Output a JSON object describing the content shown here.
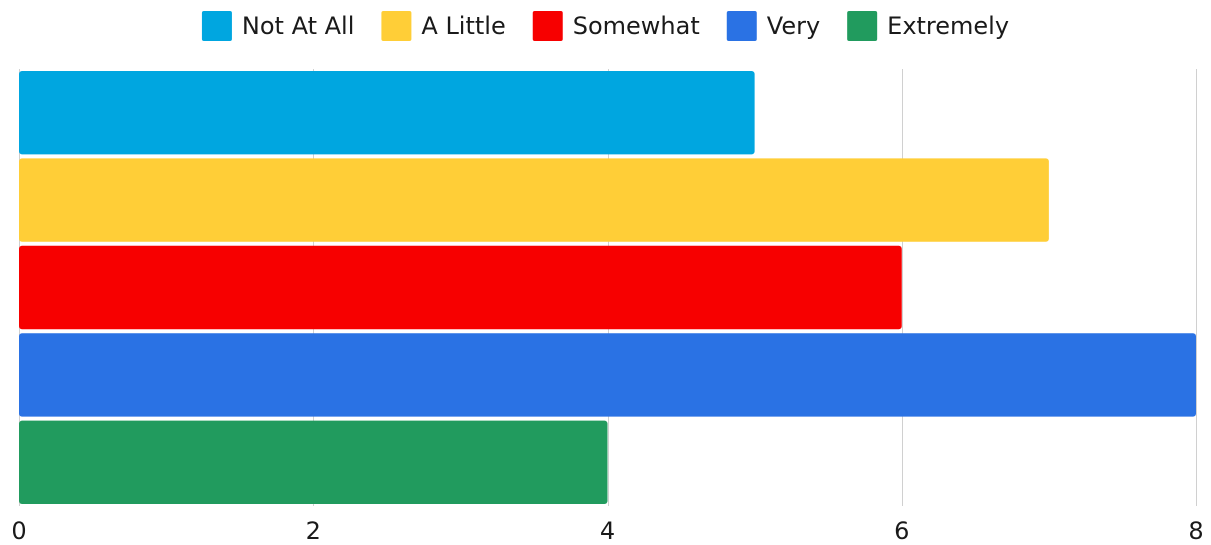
{
  "chart_data": {
    "type": "bar",
    "orientation": "horizontal",
    "title": "",
    "xlabel": "",
    "ylabel": "",
    "xlim": [
      0,
      8
    ],
    "x_ticks": [
      0,
      2,
      4,
      6,
      8
    ],
    "grid": true,
    "legend_position": "top",
    "series": [
      {
        "name": "Not At All",
        "values": [
          5
        ],
        "color": "#00A6E0"
      },
      {
        "name": "A Little",
        "values": [
          7
        ],
        "color": "#FFCE37"
      },
      {
        "name": "Somewhat",
        "values": [
          6
        ],
        "color": "#F70000"
      },
      {
        "name": "Very",
        "values": [
          8
        ],
        "color": "#2A72E4"
      },
      {
        "name": "Extremely",
        "values": [
          4
        ],
        "color": "#219B5E"
      }
    ]
  }
}
